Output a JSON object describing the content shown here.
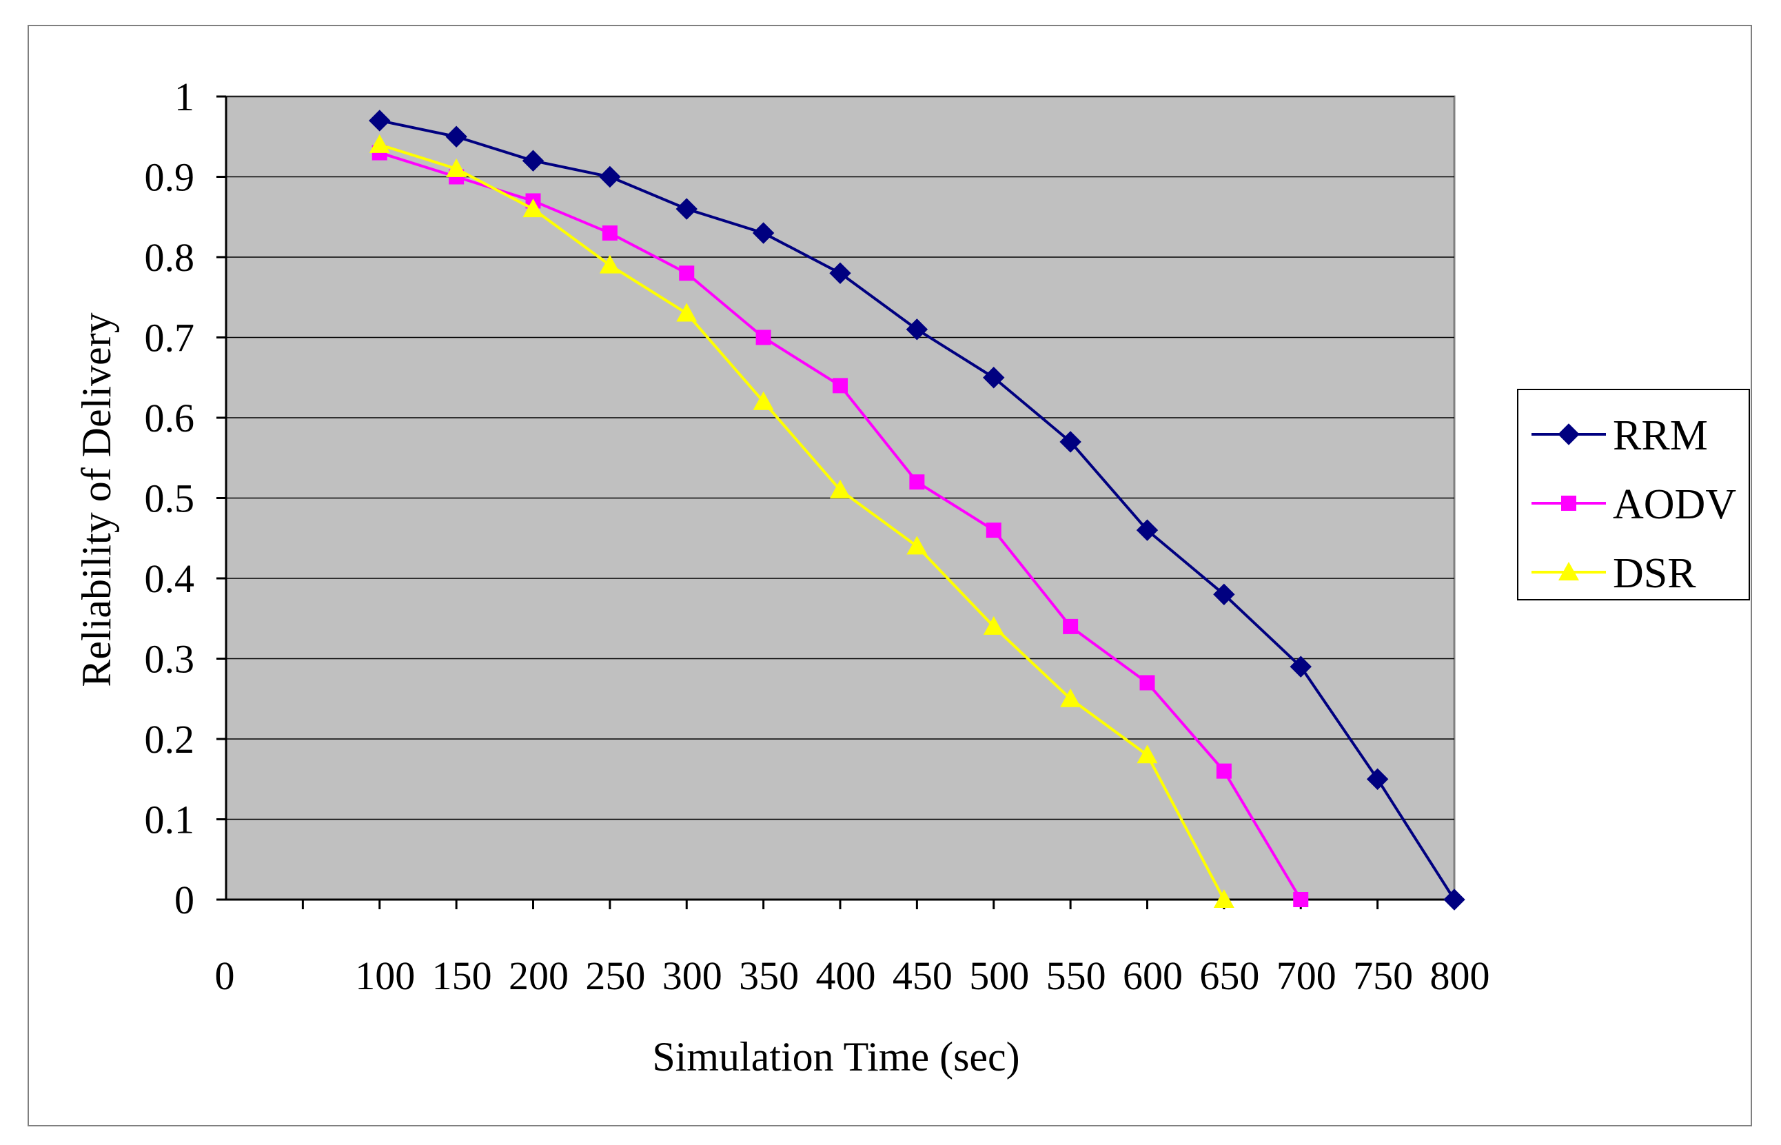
{
  "chart_data": {
    "type": "line",
    "title": "",
    "xlabel": "Simulation Time (sec)",
    "ylabel": "Reliability of Delivery",
    "x_ticks": [
      "0",
      "100",
      "150",
      "200",
      "250",
      "300",
      "350",
      "400",
      "450",
      "500",
      "550",
      "600",
      "650",
      "700",
      "750",
      "800"
    ],
    "y_ticks": [
      "0",
      "0.1",
      "0.2",
      "0.3",
      "0.4",
      "0.5",
      "0.6",
      "0.7",
      "0.8",
      "0.9",
      "1"
    ],
    "ylim": [
      0,
      1
    ],
    "grid": "horizontal",
    "plot_background": "#c0c0c0",
    "legend_position": "right",
    "series": [
      {
        "name": "RRM",
        "color": "#000080",
        "marker": "diamond",
        "x": [
          100,
          150,
          200,
          250,
          300,
          350,
          400,
          450,
          500,
          550,
          600,
          650,
          700,
          750,
          800
        ],
        "values": [
          0.97,
          0.95,
          0.92,
          0.9,
          0.86,
          0.83,
          0.78,
          0.71,
          0.65,
          0.57,
          0.46,
          0.38,
          0.29,
          0.15,
          0.0
        ]
      },
      {
        "name": "AODV",
        "color": "#ff00ff",
        "marker": "square",
        "x": [
          100,
          150,
          200,
          250,
          300,
          350,
          400,
          450,
          500,
          550,
          600,
          650,
          700
        ],
        "values": [
          0.93,
          0.9,
          0.87,
          0.83,
          0.78,
          0.7,
          0.64,
          0.52,
          0.46,
          0.34,
          0.27,
          0.16,
          0.0
        ]
      },
      {
        "name": "DSR",
        "color": "#ffff00",
        "marker": "triangle",
        "x": [
          100,
          150,
          200,
          250,
          300,
          350,
          400,
          450,
          500,
          550,
          600,
          650
        ],
        "values": [
          0.94,
          0.91,
          0.86,
          0.79,
          0.73,
          0.62,
          0.51,
          0.44,
          0.34,
          0.25,
          0.18,
          0.0
        ]
      }
    ]
  }
}
